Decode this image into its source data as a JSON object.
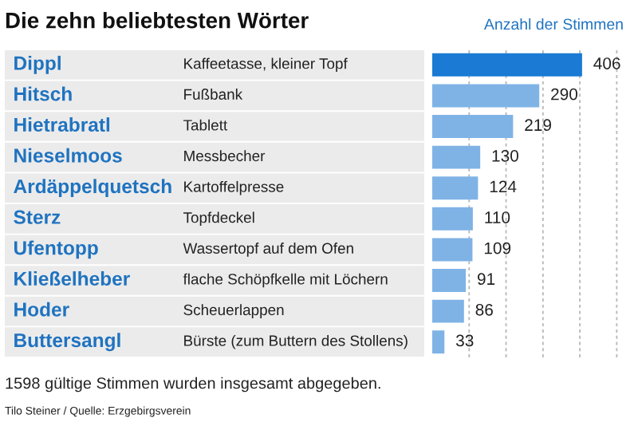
{
  "chart_data": {
    "type": "bar",
    "orientation": "horizontal",
    "title": "Die zehn beliebtesten Wörter",
    "xlabel": "Anzahl der Stimmen",
    "categories": [
      "Dippl",
      "Hitsch",
      "Hietrabratl",
      "Nieselmoos",
      "Ardäppelquetsch",
      "Sterz",
      "Ufentopp",
      "Kließelheber",
      "Hoder",
      "Buttersangl"
    ],
    "values": [
      406,
      290,
      219,
      130,
      124,
      110,
      109,
      91,
      86,
      33
    ],
    "colors": [
      "#1a7ad4",
      "#7fb3e6",
      "#7fb3e6",
      "#7fb3e6",
      "#7fb3e6",
      "#7fb3e6",
      "#7fb3e6",
      "#7fb3e6",
      "#7fb3e6",
      "#7fb3e6"
    ],
    "data_labels": true,
    "grid": "x",
    "xlim": [
      0,
      510
    ],
    "xticks": [
      {
        "value": 100,
        "label": null
      },
      {
        "value": 200,
        "label": null
      },
      {
        "value": 300,
        "label": null
      },
      {
        "value": 400,
        "label": null
      },
      {
        "value": 500,
        "label": null
      }
    ],
    "annotations": [
      "Kaffeetasse, kleiner Topf",
      "Fußbank",
      "Tablett",
      "Messbecher",
      "Kartoffelpresse",
      "Topfdeckel",
      "Wassertopf auf dem Ofen",
      "flache Schöpfkelle mit Löchern",
      "Scheuerlappen",
      "Bürste (zum Buttern des Stollens)",
      "1598 gültige Stimmen wurden insgesamt abgegeben.",
      "Tilo Steiner / Quelle: Erzgebirgsverein"
    ]
  }
}
